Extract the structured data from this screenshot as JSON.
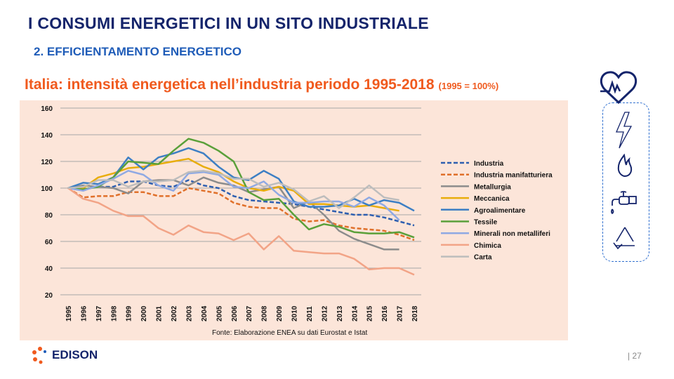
{
  "header": {
    "title": "I CONSUMI ENERGETICI IN UN SITO INDUSTRIALE",
    "subtitle": "2. EFFICIENTAMENTO  ENERGETICO"
  },
  "chart_title": "Italia: intensità energetica nell’industria periodo 1995-2018",
  "chart_title_note": "(1995 = 100%)",
  "footer": {
    "brand": "EDISON",
    "page": "| 27"
  },
  "chart_data": {
    "type": "line",
    "title": "Italia: intensità energetica nell’industria periodo 1995-2018",
    "ylabel": "1995 = 100%",
    "xlabel": "",
    "source": "Fonte: Elaborazione ENEA su dati Eurostat e Istat",
    "ylim": [
      20,
      160
    ],
    "yticks": [
      20,
      40,
      60,
      80,
      100,
      120,
      140,
      160
    ],
    "grid": true,
    "legend": "right",
    "x": [
      "1995",
      "1996",
      "1997",
      "1998",
      "1999",
      "2000",
      "2001",
      "2002",
      "2003",
      "2004",
      "2005",
      "2006",
      "2007",
      "2008",
      "2009",
      "2010",
      "2011",
      "2012",
      "2013",
      "2014",
      "2015",
      "2016",
      "2017",
      "2018"
    ],
    "series": [
      {
        "name": "Industria",
        "color": "#2e5fb0",
        "dashed": true,
        "values": [
          100,
          99,
          101,
          101,
          105,
          105,
          102,
          101,
          106,
          102,
          100,
          94,
          91,
          90,
          89,
          88,
          86,
          84,
          82,
          80,
          80,
          78,
          75,
          72
        ]
      },
      {
        "name": "Industria manifatturiera",
        "color": "#e0702a",
        "dashed": true,
        "values": [
          100,
          93,
          94,
          94,
          97,
          97,
          94,
          94,
          100,
          98,
          96,
          89,
          86,
          85,
          85,
          77,
          75,
          76,
          72,
          70,
          69,
          68,
          65,
          61
        ]
      },
      {
        "name": "Metallurgia",
        "color": "#8c8c8c",
        "dashed": false,
        "values": [
          100,
          102,
          101,
          100,
          96,
          105,
          106,
          106,
          102,
          108,
          104,
          102,
          97,
          99,
          101,
          85,
          90,
          80,
          68,
          62,
          58,
          54,
          54,
          null
        ]
      },
      {
        "name": "Meccanica",
        "color": "#e8ad0c",
        "dashed": false,
        "values": [
          100,
          100,
          108,
          111,
          115,
          116,
          118,
          120,
          122,
          116,
          112,
          105,
          100,
          98,
          101,
          98,
          88,
          88,
          87,
          86,
          87,
          85,
          83,
          null
        ]
      },
      {
        "name": "Agroalimentare",
        "color": "#3d7fc4",
        "dashed": false,
        "values": [
          100,
          104,
          103,
          108,
          123,
          114,
          123,
          126,
          130,
          126,
          116,
          108,
          106,
          113,
          107,
          90,
          86,
          86,
          87,
          92,
          87,
          91,
          89,
          83
        ]
      },
      {
        "name": "Tessile",
        "color": "#5aa03a",
        "dashed": false,
        "values": [
          100,
          99,
          101,
          108,
          120,
          119,
          118,
          128,
          137,
          134,
          128,
          120,
          97,
          91,
          92,
          80,
          69,
          73,
          71,
          67,
          66,
          66,
          67,
          63
        ]
      },
      {
        "name": "Minerali non metalliferi",
        "color": "#8fa9e3",
        "dashed": false,
        "values": [
          100,
          98,
          102,
          107,
          113,
          110,
          102,
          98,
          111,
          112,
          110,
          101,
          100,
          105,
          95,
          89,
          89,
          90,
          90,
          86,
          93,
          87,
          76,
          null
        ]
      },
      {
        "name": "Chimica",
        "color": "#f2a487",
        "dashed": false,
        "values": [
          100,
          92,
          89,
          83,
          79,
          79,
          70,
          65,
          72,
          67,
          66,
          61,
          66,
          54,
          64,
          53,
          52,
          51,
          51,
          47,
          39,
          40,
          40,
          35
        ]
      },
      {
        "name": "Carta",
        "color": "#bdbdbd",
        "dashed": false,
        "values": [
          100,
          101,
          106,
          106,
          101,
          105,
          105,
          106,
          112,
          113,
          111,
          107,
          107,
          101,
          104,
          99,
          90,
          94,
          85,
          93,
          102,
          93,
          91,
          null
        ]
      }
    ]
  },
  "colors": {
    "title": "#14246b",
    "subtitle": "#1f5cb8",
    "chart_title": "#f05a1e",
    "chart_bg": "#fce5d9"
  }
}
